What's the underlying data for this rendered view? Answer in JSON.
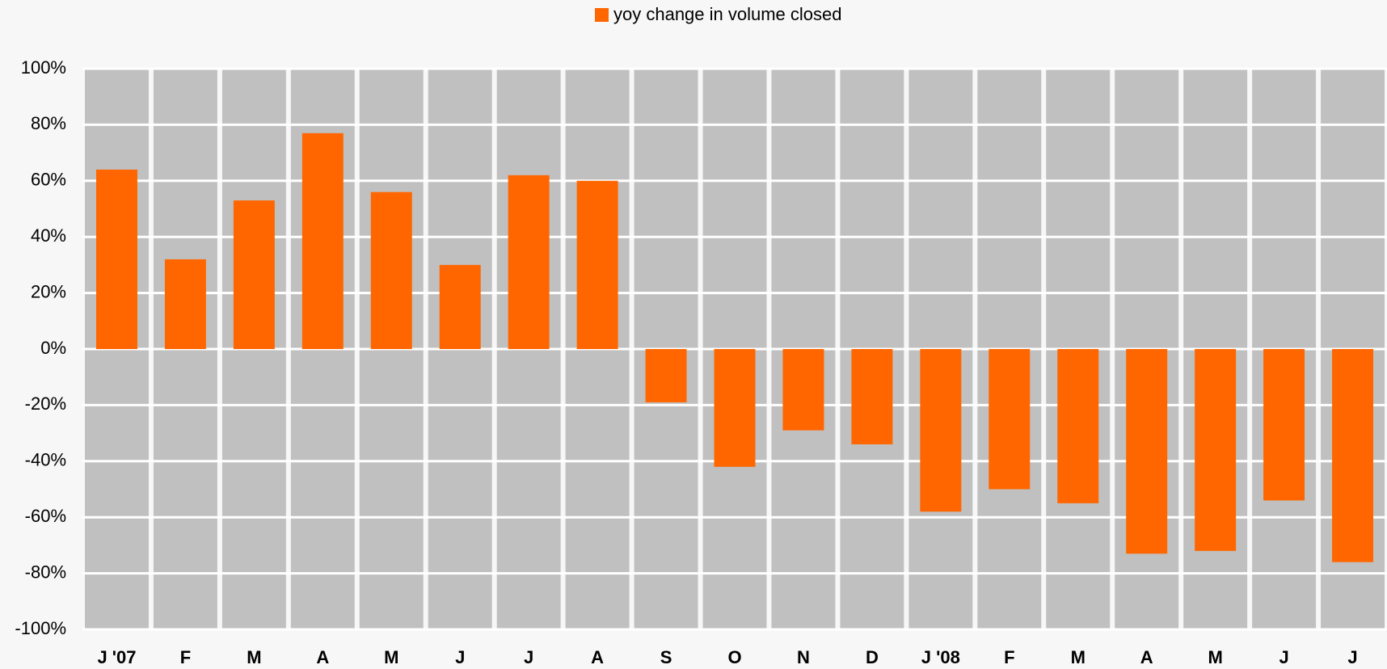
{
  "chart_data": {
    "type": "bar",
    "categories": [
      "J '07",
      "F",
      "M",
      "A",
      "M",
      "J",
      "J",
      "A",
      "S",
      "O",
      "N",
      "D",
      "J '08",
      "F",
      "M",
      "A",
      "M",
      "J",
      "J"
    ],
    "series": [
      {
        "name": "yoy change in volume closed",
        "color": "#ff6600",
        "values": [
          64,
          32,
          53,
          77,
          56,
          30,
          62,
          60,
          -19,
          -42,
          -29,
          -34,
          -58,
          -50,
          -55,
          -73,
          -72,
          -54,
          -76
        ]
      }
    ],
    "ylim": [
      -100,
      100
    ],
    "yticks": [
      {
        "value": -100,
        "label": "-100%"
      },
      {
        "value": -80,
        "label": "-80%"
      },
      {
        "value": -60,
        "label": "-60%"
      },
      {
        "value": -40,
        "label": "-40%"
      },
      {
        "value": -20,
        "label": "-20%"
      },
      {
        "value": 0,
        "label": "0%"
      },
      {
        "value": 20,
        "label": "20%"
      },
      {
        "value": 40,
        "label": "40%"
      },
      {
        "value": 60,
        "label": "60%"
      },
      {
        "value": 80,
        "label": "80%"
      },
      {
        "value": 100,
        "label": "100%"
      }
    ],
    "grid": true,
    "legend": "top"
  }
}
